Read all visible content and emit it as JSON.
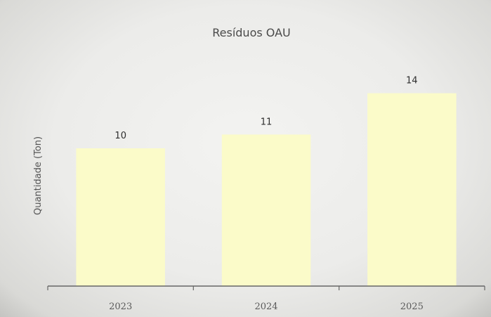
{
  "chart_data": {
    "type": "bar",
    "title": "Resíduos OAU",
    "xlabel": "",
    "ylabel": "Quantidade (Ton)",
    "categories": [
      "2023",
      "2024",
      "2025"
    ],
    "values": [
      10,
      11,
      14
    ],
    "data_labels": [
      "10",
      "11",
      "14"
    ],
    "ylim": [
      0,
      20
    ],
    "grid": false,
    "legend": "none",
    "bar_color": "#fbfbc9",
    "axis_color": "#666666"
  }
}
